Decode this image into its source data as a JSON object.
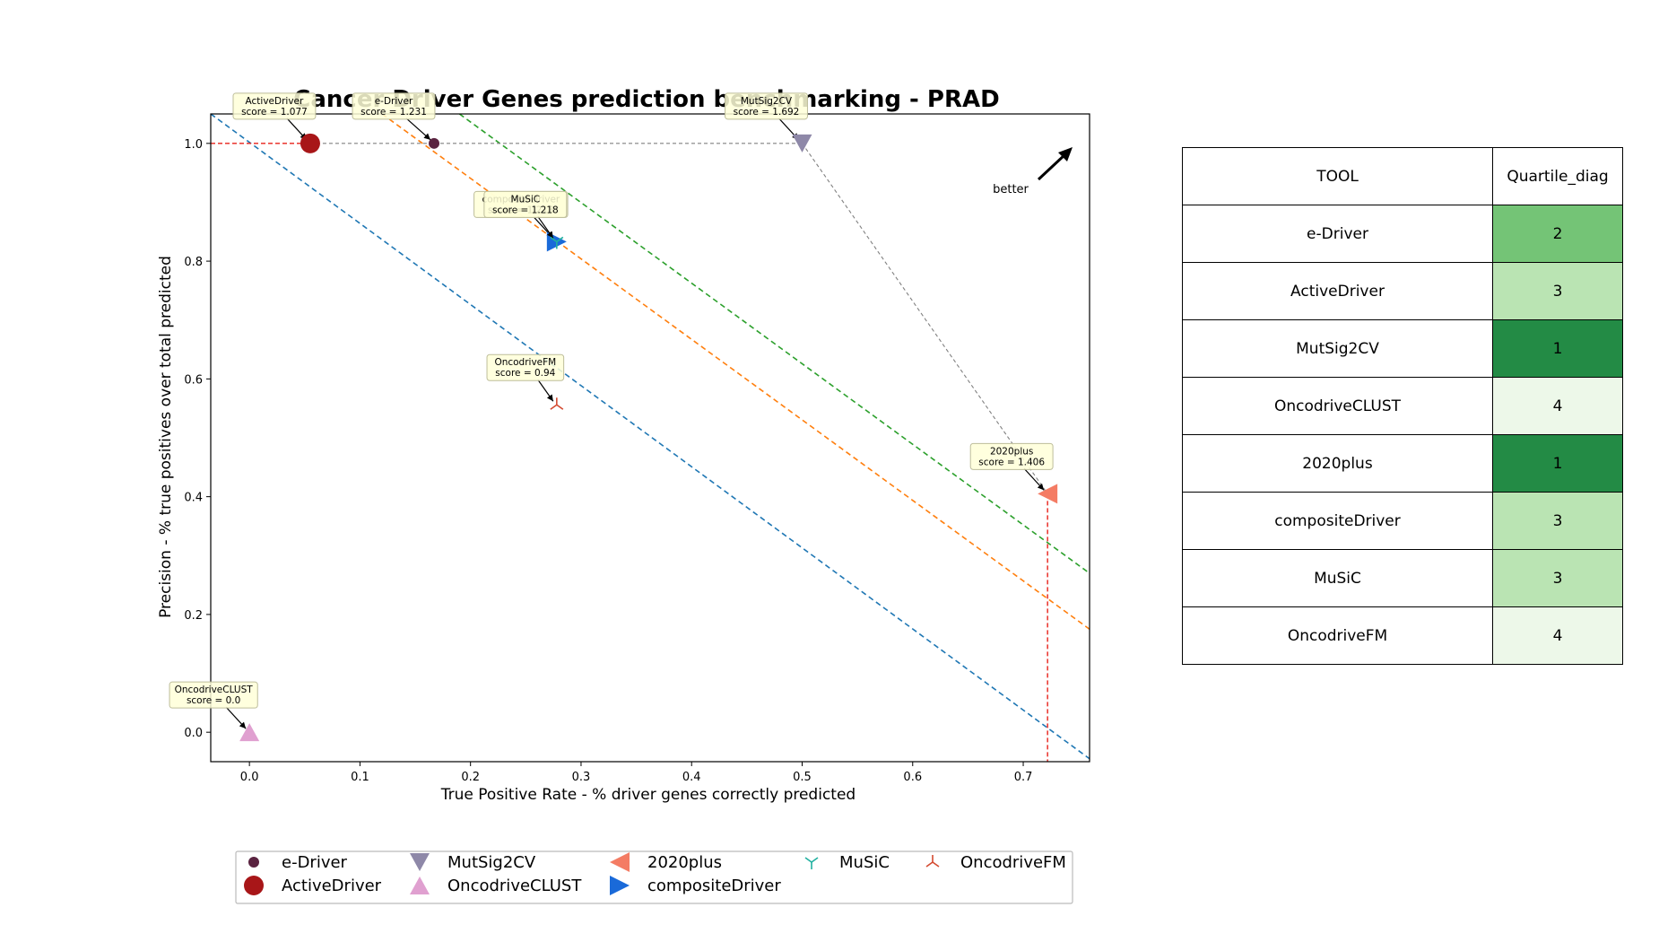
{
  "chart_data": {
    "type": "scatter",
    "title": "Cancer Driver Genes prediction benchmarking - PRAD",
    "xlabel": "True Positive Rate - % driver genes correctly predicted",
    "ylabel": "Precision - % true positives over total predicted",
    "xlim": [
      -0.035,
      0.76
    ],
    "ylim": [
      -0.05,
      1.05
    ],
    "x_ticks": [
      "0.0",
      "0.1",
      "0.2",
      "0.3",
      "0.4",
      "0.5",
      "0.6",
      "0.7"
    ],
    "y_ticks": [
      "0.0",
      "0.2",
      "0.4",
      "0.6",
      "0.8",
      "1.0"
    ],
    "grid": false,
    "better_label": "better",
    "diagonal_lines": [
      {
        "color": "#1f77b4",
        "x1": -0.035,
        "y1": 1.05,
        "x2": 0.76,
        "y2": -0.045
      },
      {
        "color": "#ff7f0e",
        "x1": 0.12,
        "y1": 1.05,
        "x2": 0.76,
        "y2": 0.175
      },
      {
        "color": "#2ca02c",
        "x1": 0.19,
        "y1": 1.05,
        "x2": 0.76,
        "y2": 0.27
      }
    ],
    "series": [
      {
        "name": "e-Driver",
        "x": 0.167,
        "y": 1.0,
        "marker": "circle-small",
        "color": "#5a2340",
        "annotation": [
          "e-Driver",
          "score = 1.231"
        ]
      },
      {
        "name": "ActiveDriver",
        "x": 0.055,
        "y": 1.0,
        "marker": "circle",
        "color": "#a81618",
        "annotation": [
          "ActiveDriver",
          "score = 1.077"
        ]
      },
      {
        "name": "MutSig2CV",
        "x": 0.5,
        "y": 1.0,
        "marker": "triangle-down",
        "color": "#8e88a8",
        "annotation": [
          "MutSig2CV",
          "score = 1.692"
        ]
      },
      {
        "name": "OncodriveCLUST",
        "x": 0.0,
        "y": 0.0,
        "marker": "triangle-up",
        "color": "#e0a0d0",
        "annotation": [
          "OncodriveCLUST",
          "score = 0.0"
        ]
      },
      {
        "name": "2020plus",
        "x": 0.722,
        "y": 0.405,
        "marker": "triangle-left",
        "color": "#f47c64",
        "annotation": [
          "2020plus",
          "score = 1.406"
        ]
      },
      {
        "name": "compositeDriver",
        "x": 0.278,
        "y": 0.833,
        "marker": "triangle-right",
        "color": "#1a6ad9",
        "annotation": [
          "compositeDriver",
          "score = 1.218"
        ]
      },
      {
        "name": "MuSiC",
        "x": 0.278,
        "y": 0.833,
        "marker": "tri-down",
        "color": "#20b0a0",
        "annotation": [
          "MuSiC",
          "score = 1.218"
        ]
      },
      {
        "name": "OncodriveFM",
        "x": 0.278,
        "y": 0.556,
        "marker": "tri-up",
        "color": "#d44a30",
        "annotation": [
          "OncodriveFM",
          "score = 0.94"
        ]
      }
    ],
    "pareto_frontier": [
      [
        0.055,
        1.0
      ],
      [
        0.167,
        1.0
      ],
      [
        0.5,
        1.0
      ],
      [
        0.722,
        0.405
      ]
    ]
  },
  "table": {
    "headers": [
      "TOOL",
      "Quartile_diag"
    ],
    "rows": [
      {
        "tool": "e-Driver",
        "quartile": "2",
        "color": "#74c476"
      },
      {
        "tool": "ActiveDriver",
        "quartile": "3",
        "color": "#bae4b3"
      },
      {
        "tool": "MutSig2CV",
        "quartile": "1",
        "color": "#238b45"
      },
      {
        "tool": "OncodriveCLUST",
        "quartile": "4",
        "color": "#edf8e9"
      },
      {
        "tool": "2020plus",
        "quartile": "1",
        "color": "#238b45"
      },
      {
        "tool": "compositeDriver",
        "quartile": "3",
        "color": "#bae4b3"
      },
      {
        "tool": "MuSiC",
        "quartile": "3",
        "color": "#bae4b3"
      },
      {
        "tool": "OncodriveFM",
        "quartile": "4",
        "color": "#edf8e9"
      }
    ]
  }
}
